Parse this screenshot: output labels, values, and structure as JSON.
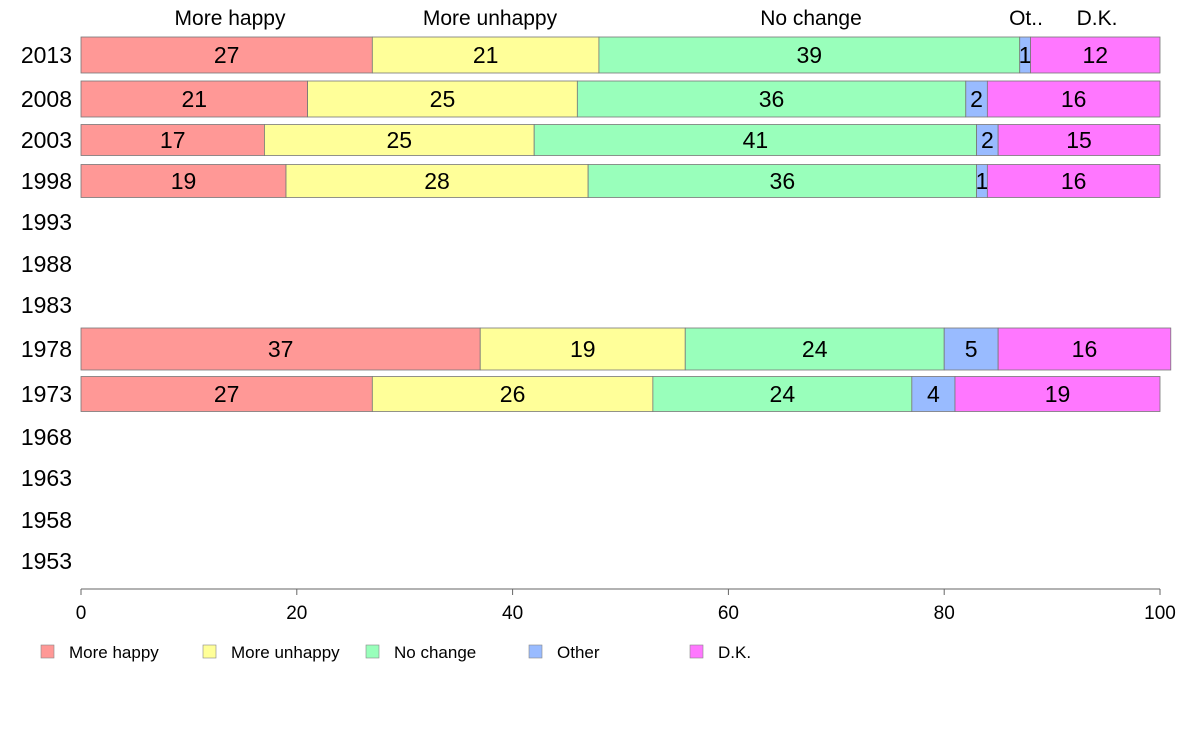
{
  "chart_data": {
    "type": "bar",
    "orientation": "horizontal",
    "stacked": true,
    "title": "",
    "xlabel": "",
    "ylabel": "",
    "xlim": [
      0,
      100
    ],
    "x_ticks": [
      "0",
      "20",
      "40",
      "60",
      "80",
      "100"
    ],
    "categories": [
      "2013",
      "2008",
      "2003",
      "1998",
      "1993",
      "1988",
      "1983",
      "1978",
      "1973",
      "1968",
      "1963",
      "1958",
      "1953"
    ],
    "column_headers": [
      "More happy",
      "More unhappy",
      "No change",
      "Ot..",
      "D.K."
    ],
    "series": [
      {
        "name": "More happy",
        "color": "#ff9896",
        "values": [
          27,
          21,
          17,
          19,
          null,
          null,
          null,
          37,
          27,
          null,
          null,
          null,
          null
        ]
      },
      {
        "name": "More unhappy",
        "color": "#ffff99",
        "values": [
          21,
          25,
          25,
          28,
          null,
          null,
          null,
          19,
          26,
          null,
          null,
          null,
          null
        ]
      },
      {
        "name": "No change",
        "color": "#99ffbb",
        "values": [
          39,
          36,
          41,
          36,
          null,
          null,
          null,
          24,
          24,
          null,
          null,
          null,
          null
        ]
      },
      {
        "name": "Other",
        "color": "#99bbff",
        "values": [
          1,
          2,
          2,
          1,
          null,
          null,
          null,
          5,
          4,
          null,
          null,
          null,
          null
        ]
      },
      {
        "name": "D.K.",
        "color": "#ff77ff",
        "values": [
          12,
          16,
          15,
          16,
          null,
          null,
          null,
          16,
          19,
          null,
          null,
          null,
          null
        ]
      }
    ],
    "legend": {
      "position": "bottom",
      "entries": [
        "More happy",
        "More unhappy",
        "No change",
        "Other",
        "D.K."
      ]
    },
    "grid": false
  }
}
